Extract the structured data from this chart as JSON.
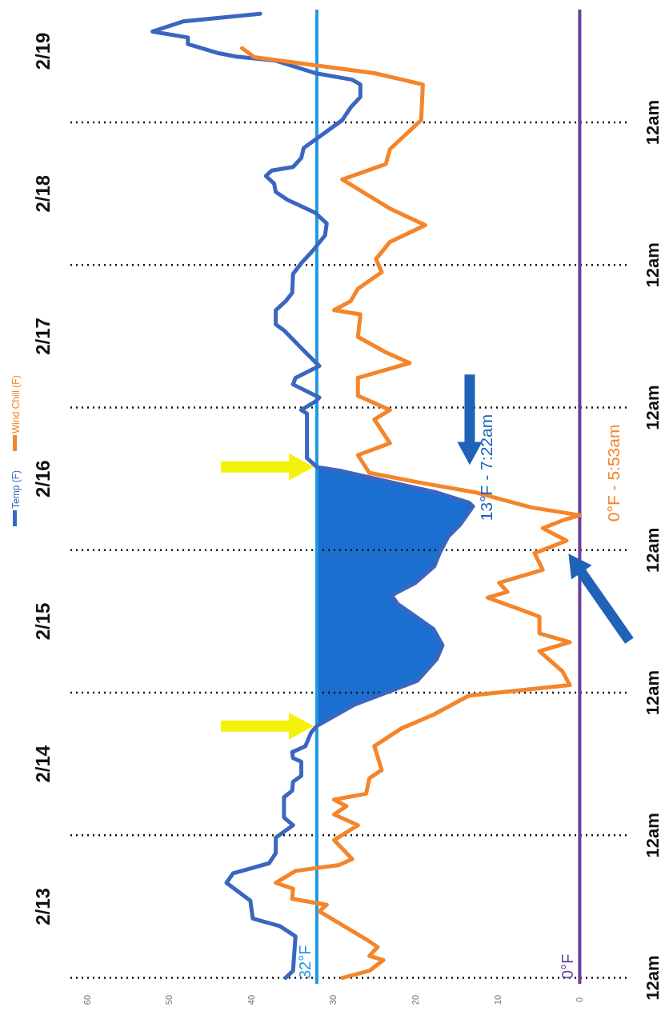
{
  "chart_data": {
    "type": "line",
    "orientation": "horizontal",
    "xlim": [
      62,
      -6
    ],
    "xticks": [
      60,
      50,
      40,
      30,
      20,
      10,
      0
    ],
    "ylim": [
      "--02-12T23:00",
      "--02-19T19:00"
    ],
    "y2lim": [
      "--02-12T23:00",
      "--02-19T19:00"
    ],
    "yticks": [
      {
        "value": "--02-13T12:00",
        "label": "2/13"
      },
      {
        "value": "--02-14T12:00",
        "label": "2/14"
      },
      {
        "value": "--02-15T12:00",
        "label": "2/15"
      },
      {
        "value": "--02-16T12:00",
        "label": "2/16"
      },
      {
        "value": "--02-17T12:00",
        "label": "2/17"
      },
      {
        "value": "--02-18T12:00",
        "label": "2/18"
      },
      {
        "value": "--02-19T12:00",
        "label": "2/19"
      }
    ],
    "y2ticks": [
      {
        "value": "--02-13T00:00",
        "label": "12am"
      },
      {
        "value": "--02-14T00:00",
        "label": "12am"
      },
      {
        "value": "--02-15T00:00",
        "label": "12am"
      },
      {
        "value": "--02-16T00:00",
        "label": "12am"
      },
      {
        "value": "--02-17T00:00",
        "label": "12am"
      },
      {
        "value": "--02-18T00:00",
        "label": "12am"
      },
      {
        "value": "--02-19T00:00",
        "label": "12am"
      }
    ],
    "legend": "left",
    "series": [
      {
        "name": "Temp (F)",
        "color": "#3a66c0",
        "x": [
          "--02-13T00:00",
          "--02-13T01:12",
          "--02-13T07:00",
          "--02-13T08:42",
          "--02-13T10:00",
          "--02-13T13:00",
          "--02-13T16:00",
          "--02-13T17:36",
          "--02-13T19:18",
          "--02-13T21:00",
          "--02-13T23:36",
          "--02-14T01:42",
          "--02-14T03:00",
          "--02-14T06:24",
          "--02-14T07:30",
          "--02-14T09:00",
          "--02-14T10:00",
          "--02-14T12:24",
          "--02-14T13:00",
          "--02-14T14:00",
          "--02-14T15:00",
          "--02-14T17:18",
          "--02-14T18:24",
          "--02-14T22:00",
          "--02-15T02:00",
          "--02-15T05:42",
          "--02-15T08:00",
          "--02-15T10:42",
          "--02-15T15:00",
          "--02-15T16:24",
          "--02-15T18:30",
          "--02-15T21:18",
          "--02-15T23:42",
          "--02-16T02:18",
          "--02-16T04:24",
          "--02-16T07:22",
          "--02-16T08:00",
          "--02-16T09:42",
          "--02-16T11:12",
          "--02-16T13:18",
          "--02-16T14:00",
          "--02-16T15:30",
          "--02-16T23:00",
          "--02-16T23:36",
          "--02-17T01:00",
          "--02-17T01:42",
          "--02-17T03:54",
          "--02-17T05:00",
          "--02-17T07:00",
          "--02-17T09:36",
          "--02-17T13:00",
          "--02-17T14:00",
          "--02-17T16:24",
          "--02-17T17:54",
          "--02-17T19:18",
          "--02-17T22:30",
          "--02-18T00:18",
          "--02-18T02:24",
          "--02-18T05:00",
          "--02-18T07:00",
          "--02-18T08:48",
          "--02-18T11:00",
          "--02-18T12:18",
          "--02-18T13:42",
          "--02-18T15:00",
          "--02-18T15:54",
          "--02-18T16:30",
          "--02-18T18:00",
          "--02-18T19:42",
          "--02-18T21:36",
          "--02-19T00:24",
          "--02-19T02:30",
          "--02-19T04:18",
          "--02-19T06:24",
          "--02-19T07:12",
          "--02-19T08:18",
          "--02-19T10:24",
          "--02-19T11:06",
          "--02-19T11:42",
          "--02-19T13:12",
          "--02-19T14:18",
          "--02-19T15:18",
          "--02-19T17:00",
          "--02-19T18:18"
        ],
        "values": [
          35.8,
          34.9,
          34.6,
          36.5,
          39.8,
          40.1,
          43,
          42.2,
          37.8,
          37,
          37,
          34.9,
          36,
          36,
          35,
          34.9,
          33.9,
          33.9,
          34.9,
          35,
          33.4,
          32.7,
          32,
          27.4,
          19.8,
          17.4,
          16.7,
          17.8,
          22.2,
          22.9,
          20,
          17.7,
          17,
          16,
          14.5,
          13,
          13.5,
          17.4,
          22.2,
          28.9,
          32,
          33.2,
          33.2,
          33.9,
          32.2,
          31.7,
          34.9,
          34.6,
          31.7,
          33.6,
          36,
          37,
          37,
          35.8,
          35,
          34.9,
          33.9,
          32.5,
          31,
          30.8,
          32.2,
          35.6,
          37,
          37.2,
          38.2,
          37.5,
          34.9,
          33.9,
          33.6,
          31.7,
          28.9,
          27.9,
          26.7,
          26.7,
          27.7,
          32.2,
          37,
          41.8,
          44.1,
          47.7,
          47.7,
          52,
          48.3,
          38.9
        ],
        "lower": [
          null,
          null,
          null,
          null,
          null,
          null,
          null,
          null,
          null,
          null,
          null,
          null,
          null,
          null,
          null,
          null,
          null,
          null,
          null,
          null,
          null,
          null,
          32,
          27.4,
          19.8,
          17.4,
          16.7,
          17.8,
          22.2,
          22.9,
          20,
          17.7,
          17,
          16,
          14.5,
          13,
          13.5,
          17.4,
          22.2,
          28.9,
          32,
          null,
          null,
          null,
          null,
          null,
          null,
          null,
          null,
          null,
          null,
          null,
          null,
          null,
          null,
          null,
          null,
          null,
          null,
          null,
          null,
          null,
          null,
          null,
          null,
          null,
          null,
          null,
          null,
          null,
          null,
          null,
          null,
          null,
          null,
          null,
          null,
          null,
          null,
          null,
          null,
          null,
          null,
          null
        ],
        "upper": [
          null,
          null,
          null,
          null,
          null,
          null,
          null,
          null,
          null,
          null,
          null,
          null,
          null,
          null,
          null,
          null,
          null,
          null,
          null,
          null,
          null,
          null,
          32,
          32,
          32,
          32,
          32,
          32,
          32,
          32,
          32,
          32,
          32,
          32,
          32,
          32,
          32,
          32,
          32,
          32,
          32,
          null,
          null,
          null,
          null,
          null,
          null,
          null,
          null,
          null,
          null,
          null,
          null,
          null,
          null,
          null,
          null,
          null,
          null,
          null,
          null,
          null,
          null,
          null,
          null,
          null,
          null,
          null,
          null,
          null,
          null,
          null,
          null,
          null,
          null,
          null,
          null,
          null,
          null,
          null,
          null,
          null,
          null,
          null
        ]
      },
      {
        "name": "Wind Chill (F)",
        "color": "#f4852a",
        "x": [
          "--02-13T00:00",
          "--02-13T01:12",
          "--02-13T03:00",
          "--02-13T03:42",
          "--02-13T05:12",
          "--02-13T06:30",
          "--02-13T11:12",
          "--02-13T12:18",
          "--02-13T13:18",
          "--02-13T15:00",
          "--02-13T16:00",
          "--02-13T18:00",
          "--02-13T19:00",
          "--02-13T20:00",
          "--02-13T23:12",
          "--02-14T01:42",
          "--02-14T03:30",
          "--02-14T04:54",
          "--02-14T06:00",
          "--02-14T07:00",
          "--02-14T09:36",
          "--02-14T11:00",
          "--02-14T15:00",
          "--02-14T18:00",
          "--02-14T20:18",
          "--02-14T23:30",
          "--02-15T01:18",
          "--02-15T03:36",
          "--02-15T07:00",
          "--02-15T08:30",
          "--02-15T10:00",
          "--02-15T12:48",
          "--02-15T14:18",
          "--02-15T16:00",
          "--02-15T17:00",
          "--02-15T18:30",
          "--02-15T20:42",
          "--02-15T23:30",
          "--02-16T01:36",
          "--02-16T03:42",
          "--02-16T05:00",
          "--02-16T05:53",
          "--02-16T06:30",
          "--02-16T07:12",
          "--02-16T09:42",
          "--02-16T10:30",
          "--02-16T11:12",
          "--02-16T13:00",
          "--02-16T16:00",
          "--02-16T18:00",
          "--02-16T22:00",
          "--02-16T23:36",
          "--02-17T02:00",
          "--02-17T05:00",
          "--02-17T07:30",
          "--02-17T09:18",
          "--02-17T11:54",
          "--02-17T15:42",
          "--02-17T16:24",
          "--02-17T17:54",
          "--02-17T20:00",
          "--02-17T22:48",
          "--02-18T01:00",
          "--02-18T03:54",
          "--02-18T06:42",
          "--02-18T09:30",
          "--02-18T14:24",
          "--02-18T17:00",
          "--02-18T19:30",
          "--02-19T00:24",
          "--02-19T06:24",
          "--02-19T08:18",
          "--02-19T10:00",
          "--02-19T11:00",
          "--02-19T12:30"
        ],
        "values": [
          28.9,
          25.6,
          23.9,
          25.6,
          24.6,
          26,
          31.7,
          30.8,
          35,
          34.9,
          37,
          34.6,
          29.3,
          27.7,
          29.9,
          27,
          29.9,
          28.4,
          29.9,
          26,
          25.6,
          24.1,
          25,
          21.7,
          17.8,
          13.5,
          1.2,
          2.1,
          4.9,
          1.2,
          4.9,
          4.9,
          7.8,
          11.2,
          8.8,
          9.8,
          4.5,
          5.5,
          1.6,
          4.5,
          2.1,
          0,
          null,
          5.9,
          12.6,
          null,
          18.8,
          25.6,
          27,
          23.1,
          25,
          23.1,
          27,
          27,
          20.7,
          23.6,
          27,
          26.7,
          29.9,
          27.9,
          27,
          24.1,
          24.8,
          23.1,
          18.8,
          23.1,
          28.9,
          23.6,
          23.1,
          19.3,
          19.1,
          25,
          null,
          39.6,
          41.1
        ]
      }
    ],
    "ref_lines": [
      {
        "axis": "x",
        "value": 32,
        "label": "32°F",
        "color": "#1e9be0"
      },
      {
        "axis": "x",
        "value": 0,
        "label": "0°F",
        "color": "#6a3d9a"
      },
      {
        "axis": "y",
        "value": "--02-13T00:00",
        "color": "#111111",
        "line_style": "dotted"
      },
      {
        "axis": "y",
        "value": "--02-14T00:00",
        "color": "#111111",
        "line_style": "dotted"
      },
      {
        "axis": "y",
        "value": "--02-15T00:00",
        "color": "#111111",
        "line_style": "dotted"
      },
      {
        "axis": "y",
        "value": "--02-16T00:00",
        "color": "#111111",
        "line_style": "dotted"
      },
      {
        "axis": "y",
        "value": "--02-17T00:00",
        "color": "#111111",
        "line_style": "dotted"
      },
      {
        "axis": "y",
        "value": "--02-18T00:00",
        "color": "#111111",
        "line_style": "dotted"
      },
      {
        "axis": "y",
        "value": "--02-19T00:00",
        "color": "#111111",
        "line_style": "dotted"
      }
    ],
    "annotations": [
      {
        "text": "13°F - 7:22am",
        "x": 13,
        "y": "--02-16T07:22"
      },
      {
        "text": "0°F - 5:53am",
        "x": 0,
        "y": "--02-16T05:53"
      }
    ]
  }
}
